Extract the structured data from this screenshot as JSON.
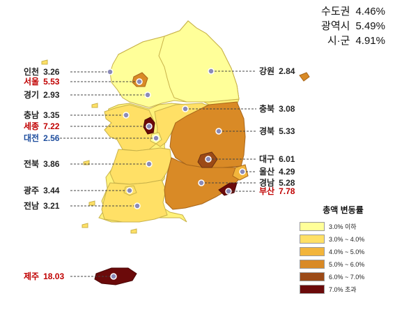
{
  "summary": [
    {
      "name": "수도권",
      "value": "4.46%"
    },
    {
      "name": "광역시",
      "value": "5.49%"
    },
    {
      "name": "시·군",
      "value": "4.91%"
    }
  ],
  "regions": [
    {
      "name": "인천",
      "value": "3.26"
    },
    {
      "name": "서울",
      "value": "5.53"
    },
    {
      "name": "경기",
      "value": "2.93"
    },
    {
      "name": "충남",
      "value": "3.35"
    },
    {
      "name": "세종",
      "value": "7.22"
    },
    {
      "name": "대전",
      "value": "2.56"
    },
    {
      "name": "전북",
      "value": "3.86"
    },
    {
      "name": "광주",
      "value": "3.44"
    },
    {
      "name": "전남",
      "value": "3.21"
    },
    {
      "name": "제주",
      "value": "18.03"
    },
    {
      "name": "강원",
      "value": "2.84"
    },
    {
      "name": "충북",
      "value": "3.08"
    },
    {
      "name": "경북",
      "value": "5.33"
    },
    {
      "name": "대구",
      "value": "6.01"
    },
    {
      "name": "울산",
      "value": "4.29"
    },
    {
      "name": "경남",
      "value": "5.28"
    },
    {
      "name": "부산",
      "value": "7.78"
    }
  ],
  "legend": {
    "title": "총액 변동률",
    "items": [
      {
        "label": "3.0% 이하",
        "color": "#ffff99"
      },
      {
        "label": "3.0% ~ 4.0%",
        "color": "#ffe066"
      },
      {
        "label": "4.0% ~ 5.0%",
        "color": "#f2b53c"
      },
      {
        "label": "5.0% ~ 6.0%",
        "color": "#d98a26"
      },
      {
        "label": "6.0% ~ 7.0%",
        "color": "#9c4a16"
      },
      {
        "label": "7.0% 초과",
        "color": "#6b0a0a"
      }
    ]
  }
}
